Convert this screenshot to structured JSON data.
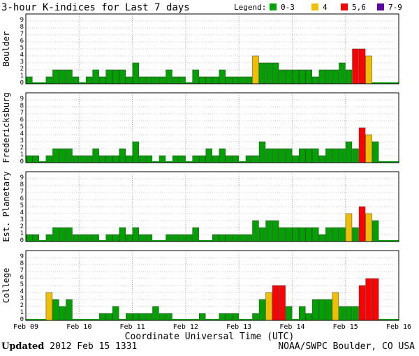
{
  "chart_data": {
    "type": "bar",
    "title": "3-hour K-indices for Last 7 days",
    "legend": {
      "label": "Legend:",
      "placement": "top-right",
      "entries": [
        {
          "label": "0-3",
          "color": "#00a000"
        },
        {
          "label": "4",
          "color": "#f0c000"
        },
        {
          "label": "5,6",
          "color": "#ff0000"
        },
        {
          "label": "7-9",
          "color": "#5a00a0"
        }
      ]
    },
    "xlabel": "Coordinate Universal Time (UTC)",
    "x_ticks": [
      "Feb 09",
      "Feb 10",
      "Feb 11",
      "Feb 12",
      "Feb 13",
      "Feb 14",
      "Feb 15",
      "Feb 16"
    ],
    "y_ticks": [
      "0",
      "1",
      "2",
      "3",
      "4",
      "5",
      "6",
      "7",
      "8",
      "9"
    ],
    "ylim": [
      0,
      9
    ],
    "grid": true,
    "panels": [
      {
        "name": "Boulder",
        "values": [
          1,
          0,
          0,
          1,
          2,
          2,
          2,
          1,
          0,
          1,
          2,
          1,
          2,
          2,
          2,
          1,
          3,
          1,
          1,
          1,
          1,
          2,
          1,
          1,
          0,
          2,
          1,
          1,
          1,
          2,
          1,
          1,
          1,
          1,
          4,
          3,
          3,
          3,
          2,
          2,
          2,
          2,
          2,
          1,
          2,
          2,
          2,
          3,
          2,
          5,
          5,
          4,
          0,
          0,
          0,
          0
        ]
      },
      {
        "name": "Fredericksburg",
        "values": [
          1,
          1,
          0,
          1,
          2,
          2,
          2,
          1,
          1,
          1,
          2,
          1,
          1,
          1,
          2,
          1,
          3,
          1,
          1,
          0,
          1,
          0,
          1,
          1,
          0,
          1,
          1,
          2,
          1,
          2,
          1,
          1,
          0,
          1,
          1,
          3,
          2,
          2,
          2,
          2,
          1,
          2,
          2,
          2,
          1,
          2,
          2,
          2,
          3,
          2,
          5,
          4,
          3,
          0,
          0,
          0
        ]
      },
      {
        "name": "Est. Planetary",
        "values": [
          1,
          1,
          0,
          1,
          2,
          2,
          2,
          1,
          1,
          1,
          1,
          0,
          1,
          1,
          2,
          1,
          2,
          1,
          1,
          0,
          0,
          1,
          1,
          1,
          1,
          2,
          0,
          0,
          1,
          1,
          1,
          1,
          1,
          1,
          3,
          2,
          3,
          3,
          2,
          2,
          2,
          2,
          2,
          2,
          1,
          2,
          2,
          2,
          4,
          2,
          5,
          4,
          3,
          0,
          0,
          0
        ]
      },
      {
        "name": "College",
        "values": [
          0,
          0,
          0,
          4,
          3,
          2,
          3,
          0,
          0,
          0,
          0,
          1,
          1,
          2,
          0,
          1,
          1,
          1,
          1,
          2,
          1,
          1,
          0,
          0,
          0,
          0,
          1,
          0,
          0,
          1,
          1,
          1,
          0,
          0,
          1,
          3,
          4,
          5,
          5,
          2,
          0,
          2,
          1,
          3,
          3,
          3,
          4,
          2,
          2,
          2,
          5,
          6,
          6,
          0,
          0,
          0
        ]
      }
    ]
  },
  "footer": {
    "updated_label": "Updated",
    "updated_value": "2012 Feb 15 1331",
    "source": "NOAA/SWPC Boulder, CO USA"
  }
}
